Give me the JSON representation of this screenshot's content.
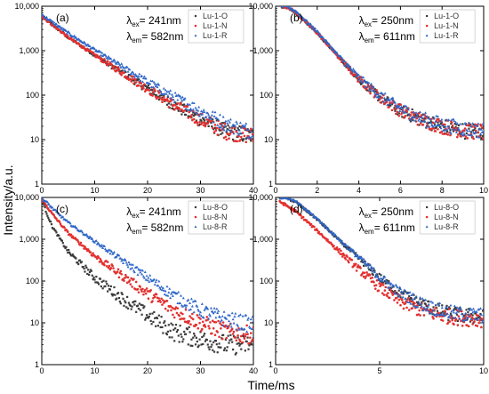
{
  "figure": {
    "xlabel": "Time/ms",
    "ylabel": "Intensity/a.u."
  },
  "chart_data": [
    {
      "type": "scatter",
      "panel_label": "(a)",
      "y_scale": "log",
      "ylim": [
        1,
        10000
      ],
      "xlim": [
        0,
        40
      ],
      "x_ticks": [
        0,
        10,
        20,
        30,
        40
      ],
      "y_tick_labels": [
        "1",
        "10",
        "100",
        "1,000",
        "10,000"
      ],
      "annotation": {
        "ex_value": "= 241nm",
        "em_value": "= 582nm"
      },
      "series": [
        {
          "name": "Lu-1-O",
          "color": "#3a3a3a",
          "marker": "square",
          "x": [
            0,
            1,
            5,
            10,
            15,
            20,
            25,
            30,
            35,
            40
          ],
          "y": [
            6000,
            4800,
            2000,
            800,
            330,
            140,
            60,
            28,
            15,
            12
          ]
        },
        {
          "name": "Lu-1-N",
          "color": "#e3302f",
          "marker": "circle",
          "x": [
            0,
            1,
            5,
            10,
            15,
            20,
            25,
            30,
            35,
            40
          ],
          "y": [
            6000,
            4800,
            2000,
            800,
            330,
            140,
            60,
            28,
            15,
            12
          ]
        },
        {
          "name": "Lu-1-R",
          "color": "#2e66c8",
          "marker": "triangle",
          "x": [
            0,
            1,
            5,
            10,
            15,
            20,
            25,
            30,
            35,
            40
          ],
          "y": [
            6500,
            5300,
            2500,
            1050,
            450,
            200,
            90,
            45,
            22,
            15
          ]
        }
      ]
    },
    {
      "type": "scatter",
      "panel_label": "(b)",
      "y_scale": "log",
      "ylim": [
        1,
        10000
      ],
      "xlim": [
        0,
        10
      ],
      "x_ticks": [
        0,
        2,
        4,
        6,
        8,
        10
      ],
      "y_tick_labels": [
        "1",
        "10",
        "100",
        "1,000",
        "10,000"
      ],
      "annotation": {
        "ex_value": "= 250nm",
        "em_value": "= 611nm"
      },
      "series": [
        {
          "name": "Lu-1-O",
          "color": "#3a3a3a",
          "marker": "square",
          "x": [
            0.3,
            0.6,
            1,
            2,
            3,
            4,
            5,
            6,
            7,
            8,
            9,
            10
          ],
          "y": [
            10000,
            9500,
            7000,
            2500,
            750,
            230,
            90,
            45,
            28,
            20,
            16,
            15
          ]
        },
        {
          "name": "Lu-1-N",
          "color": "#e3302f",
          "marker": "circle",
          "x": [
            0.3,
            0.6,
            1,
            2,
            3,
            4,
            5,
            6,
            7,
            8,
            9,
            10
          ],
          "y": [
            10000,
            9500,
            7000,
            2500,
            750,
            230,
            90,
            45,
            28,
            20,
            16,
            15
          ]
        },
        {
          "name": "Lu-1-R",
          "color": "#2e66c8",
          "marker": "triangle",
          "x": [
            0.3,
            0.6,
            1,
            2,
            3,
            4,
            5,
            6,
            7,
            8,
            9,
            10
          ],
          "y": [
            10000,
            9700,
            7500,
            2700,
            800,
            250,
            100,
            50,
            30,
            22,
            18,
            16
          ]
        }
      ]
    },
    {
      "type": "scatter",
      "panel_label": "(c)",
      "y_scale": "log",
      "ylim": [
        1,
        10000
      ],
      "xlim": [
        0,
        40
      ],
      "x_ticks": [
        0,
        10,
        20,
        30,
        40
      ],
      "y_tick_labels": [
        "1",
        "10",
        "100",
        "1,000",
        "10,000"
      ],
      "annotation": {
        "ex_value": "= 241nm",
        "em_value": "= 582nm"
      },
      "series": [
        {
          "name": "Lu-8-O",
          "color": "#3a3a3a",
          "marker": "square",
          "x": [
            0,
            1,
            2,
            5,
            10,
            15,
            20,
            25,
            30,
            35,
            40
          ],
          "y": [
            9000,
            4000,
            2000,
            500,
            120,
            40,
            15,
            6,
            4,
            3,
            3
          ]
        },
        {
          "name": "Lu-8-N",
          "color": "#e3302f",
          "marker": "circle",
          "x": [
            0,
            1,
            2,
            5,
            10,
            15,
            20,
            25,
            30,
            35,
            40
          ],
          "y": [
            9000,
            6000,
            4000,
            1400,
            400,
            140,
            50,
            20,
            10,
            6,
            5
          ]
        },
        {
          "name": "Lu-8-R",
          "color": "#2e66c8",
          "marker": "triangle",
          "x": [
            0,
            1,
            2,
            5,
            10,
            15,
            20,
            25,
            30,
            35,
            40
          ],
          "y": [
            9500,
            7500,
            5500,
            2500,
            900,
            330,
            120,
            45,
            20,
            12,
            9
          ]
        }
      ]
    },
    {
      "type": "scatter",
      "panel_label": "(d)",
      "y_scale": "log",
      "ylim": [
        1,
        10000
      ],
      "xlim": [
        0,
        10
      ],
      "x_ticks": [
        0,
        5,
        10
      ],
      "y_tick_labels": [
        "1",
        "10",
        "100",
        "1,000",
        "10,000"
      ],
      "annotation": {
        "ex_value": "= 250nm",
        "em_value": "= 611nm"
      },
      "series": [
        {
          "name": "Lu-8-O",
          "color": "#3a3a3a",
          "marker": "square",
          "x": [
            0.2,
            0.5,
            1,
            2,
            3,
            4,
            5,
            6,
            7,
            8,
            9,
            10
          ],
          "y": [
            10000,
            10000,
            7500,
            3000,
            1000,
            350,
            120,
            50,
            28,
            18,
            15,
            14
          ]
        },
        {
          "name": "Lu-8-N",
          "color": "#e3302f",
          "marker": "circle",
          "x": [
            0.2,
            0.5,
            1,
            2,
            3,
            4,
            5,
            6,
            7,
            8,
            9,
            10
          ],
          "y": [
            8000,
            6500,
            4500,
            1600,
            550,
            190,
            70,
            32,
            20,
            15,
            13,
            12
          ]
        },
        {
          "name": "Lu-8-R",
          "color": "#2e66c8",
          "marker": "triangle",
          "x": [
            0.2,
            0.5,
            1,
            2,
            3,
            4,
            5,
            6,
            7,
            8,
            9,
            10
          ],
          "y": [
            10000,
            10000,
            7800,
            3100,
            1050,
            370,
            125,
            52,
            29,
            19,
            16,
            15
          ]
        }
      ]
    }
  ]
}
